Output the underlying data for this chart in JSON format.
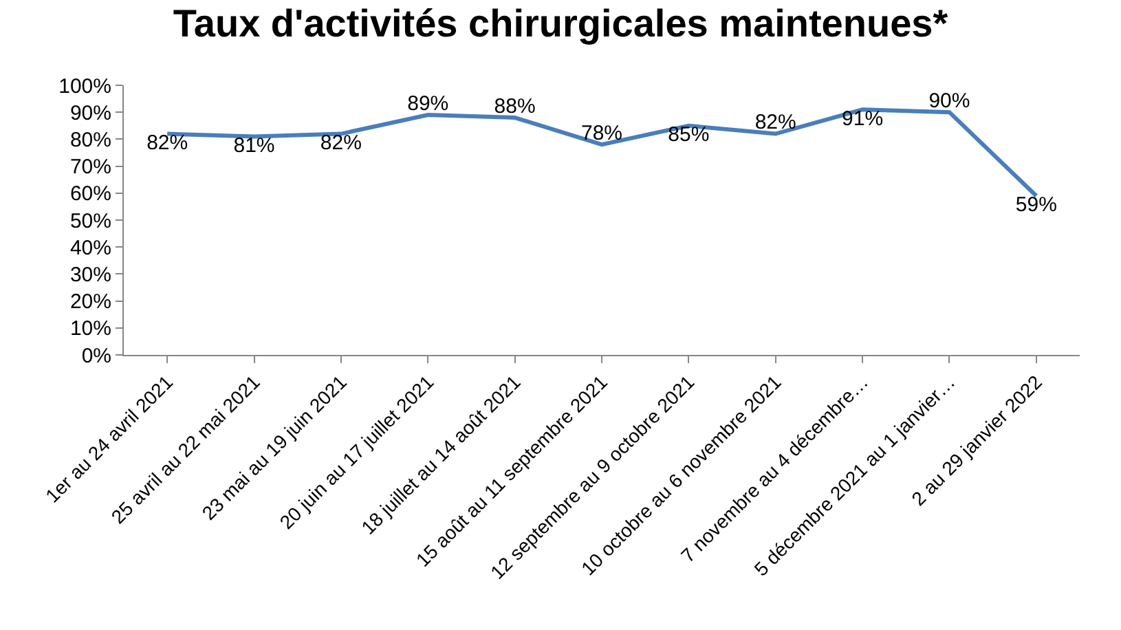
{
  "chart_data": {
    "type": "line",
    "title": "Taux d'activités chirurgicales maintenues*",
    "categories": [
      "1er au 24 avril 2021",
      "25 avril au 22 mai 2021",
      "23 mai au 19 juin 2021",
      "20 juin au 17 juillet 2021",
      "18 juillet au 14 août 2021",
      "15 août au 11 septembre 2021",
      "12 septembre au 9 octobre 2021",
      "10 octobre au 6 novembre 2021",
      "7 novembre au 4 décembre…",
      "5 décembre 2021 au 1 janvier…",
      "2 au 29 janvier 2022"
    ],
    "series": [
      {
        "color": "#4a7ebb",
        "values": [
          82,
          81,
          82,
          89,
          88,
          78,
          85,
          82,
          91,
          90,
          59
        ],
        "value_labels": [
          "82%",
          "81%",
          "82%",
          "89%",
          "88%",
          "78%",
          "85%",
          "82%",
          "91%",
          "90%",
          "59%"
        ]
      }
    ],
    "ylim": [
      0,
      100
    ],
    "yticks": [
      {
        "value": 0,
        "label": "0%"
      },
      {
        "value": 10,
        "label": "10%"
      },
      {
        "value": 20,
        "label": "20%"
      },
      {
        "value": 30,
        "label": "30%"
      },
      {
        "value": 40,
        "label": "40%"
      },
      {
        "value": 50,
        "label": "50%"
      },
      {
        "value": 60,
        "label": "60%"
      },
      {
        "value": 70,
        "label": "70%"
      },
      {
        "value": 80,
        "label": "80%"
      },
      {
        "value": 90,
        "label": "90%"
      },
      {
        "value": 100,
        "label": "100%"
      }
    ],
    "marker": "none",
    "line_style": "solid"
  }
}
